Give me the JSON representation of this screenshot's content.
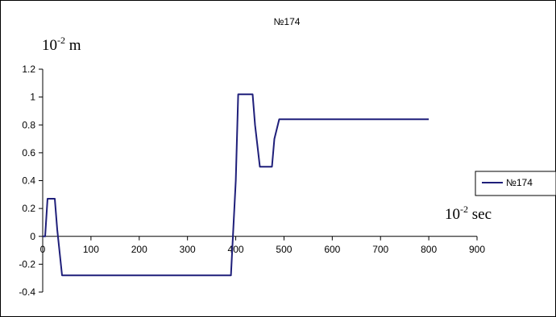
{
  "chart_data": {
    "type": "line",
    "title": "№174",
    "y_unit_base": "10",
    "y_unit_exp": "-2",
    "y_unit_suffix": " m",
    "x_unit_base": "10",
    "x_unit_exp": "-2",
    "x_unit_suffix": " sec",
    "xlim": [
      0,
      900
    ],
    "ylim": [
      -0.4,
      1.2
    ],
    "x_ticks": [
      0,
      100,
      200,
      300,
      400,
      500,
      600,
      700,
      800,
      900
    ],
    "y_ticks": [
      -0.4,
      -0.2,
      0,
      0.2,
      0.4,
      0.6,
      0.8,
      1,
      1.2
    ],
    "y_tick_labels": [
      "-0.4",
      "-0.2",
      "0",
      "0.2",
      "0.4",
      "0.6",
      "0.8",
      "1",
      "1.2"
    ],
    "grid": false,
    "legend_position": "right",
    "series": [
      {
        "name": "№174",
        "color": "#1f1f7a",
        "x": [
          0,
          5,
          10,
          25,
          30,
          40,
          390,
          400,
          405,
          410,
          435,
          440,
          450,
          475,
          480,
          490,
          800
        ],
        "y": [
          0,
          0,
          0.27,
          0.27,
          0.05,
          -0.28,
          -0.28,
          0.4,
          1.02,
          1.02,
          1.02,
          0.8,
          0.5,
          0.5,
          0.7,
          0.84,
          0.84
        ]
      }
    ]
  }
}
